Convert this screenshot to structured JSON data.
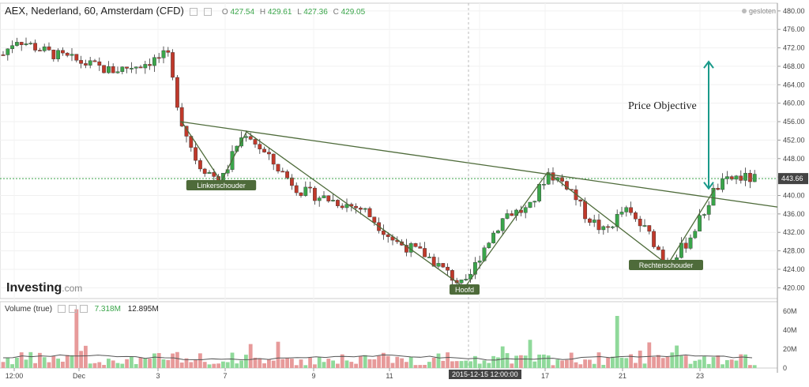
{
  "header": {
    "title": "AEX, Nederland, 60, Amsterdam (CFD)",
    "o_label": "O",
    "o": "427.54",
    "h_label": "H",
    "h": "429.61",
    "l_label": "L",
    "l": "427.36",
    "c_label": "C",
    "c": "429.05",
    "status": "gesloten"
  },
  "logo": {
    "brand": "Investing",
    "suffix": ".com"
  },
  "volume_header": {
    "label": "Volume (true)",
    "v1": "7.318M",
    "v2": "12.895M"
  },
  "crosshair_label": "2015-12-15 12:00:00",
  "current_price_label": "443.66",
  "colors": {
    "up": "#3aa54a",
    "down": "#c0392b",
    "trend": "#4e6b3a",
    "objective": "#1a9a8a"
  },
  "chart_data": [
    {
      "type": "candlestick",
      "yaxis": {
        "ticks": [
          420,
          424,
          428,
          432,
          436,
          440,
          444,
          448,
          452,
          456,
          460,
          464,
          468,
          472,
          476,
          480
        ],
        "ylim": [
          418,
          481
        ]
      },
      "xaxis": {
        "ticks": [
          "12:00",
          "Dec",
          "3",
          "7",
          "9",
          "11",
          "15",
          "17",
          "21",
          "23"
        ]
      },
      "price_line": 443.66,
      "annotations": [
        {
          "text": "Linkerschouder"
        },
        {
          "text": "Hoofd"
        },
        {
          "text": "Rechterschouder"
        },
        {
          "text": "Price Objective"
        }
      ],
      "key_points": {
        "neckline": [
          [
            0,
            456
          ],
          [
            1,
            437.5
          ]
        ],
        "pattern_path": [
          [
            456,
            "start"
          ],
          [
            443,
            "Linkerschouder"
          ],
          [
            453.8,
            "peak"
          ],
          [
            420,
            "Hoofd"
          ],
          [
            445,
            "peak"
          ],
          [
            425,
            "Rechterschouder"
          ],
          [
            441.5,
            "breakout"
          ]
        ],
        "objective_arrow": [
          441.5,
          469
        ]
      }
    },
    {
      "type": "bar",
      "title": "Volume (true)",
      "yaxis": {
        "ticks": [
          "0",
          "20M",
          "40M",
          "60M"
        ],
        "ylim": [
          0,
          65
        ]
      }
    }
  ]
}
